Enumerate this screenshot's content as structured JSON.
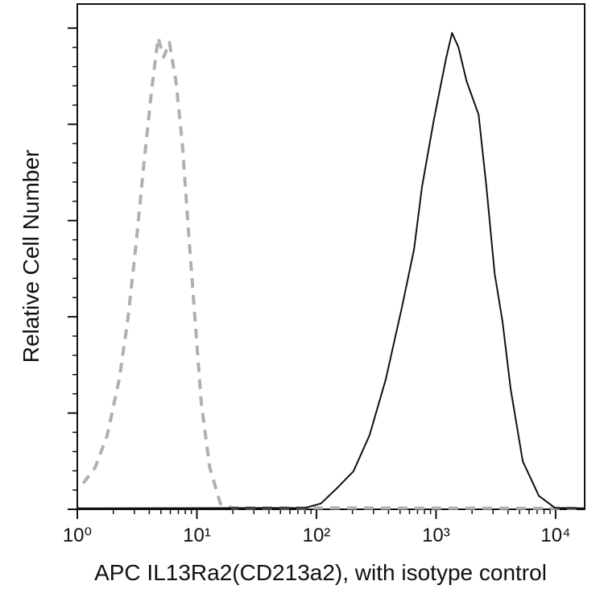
{
  "chart_data": {
    "type": "line",
    "x_label": "APC IL13Ra2(CD213a2), with isotype control",
    "y_label": "Relative Cell Number",
    "xscale": "log",
    "xlim": [
      1,
      17500
    ],
    "ylim": [
      0,
      105
    ],
    "xticks": [
      {
        "value": 1,
        "label": "10⁰"
      },
      {
        "value": 10,
        "label": "10¹"
      },
      {
        "value": 100,
        "label": "10²"
      },
      {
        "value": 1000,
        "label": "10³"
      },
      {
        "value": 10000,
        "label": "10⁴"
      }
    ],
    "yticks": [
      0,
      20,
      40,
      60,
      80,
      100
    ],
    "series": [
      {
        "color": "#b0b0b0",
        "line_style": "dashed",
        "x": [
          1.12,
          1.41,
          1.78,
          2.24,
          2.63,
          3.07,
          3.58,
          4.18,
          4.74,
          5.28,
          5.89,
          6.67,
          7.56,
          8.55,
          9.68,
          10.9,
          12.8,
          15.7,
          19.8,
          15800
        ],
        "values": [
          5.4,
          8.7,
          15.4,
          27,
          39,
          54,
          71,
          87,
          98,
          94,
          97,
          89,
          76,
          57,
          39,
          22,
          8.7,
          1.2,
          0.3,
          0.2
        ]
      },
      {
        "color": "#111111",
        "line_style": "solid",
        "x": [
          1,
          80.8,
          109,
          150,
          204,
          278,
          380,
          519,
          654,
          763,
          960,
          1220,
          1360,
          1540,
          1800,
          2270,
          2640,
          3090,
          3600,
          4210,
          5310,
          7240,
          9870,
          17500
        ],
        "values": [
          0.2,
          0.3,
          1.2,
          4.5,
          7.9,
          15.4,
          27,
          42,
          54,
          67,
          81,
          94,
          99,
          96,
          89,
          82,
          67,
          49,
          39,
          25,
          10,
          2.8,
          0.3,
          0.2
        ]
      }
    ]
  }
}
